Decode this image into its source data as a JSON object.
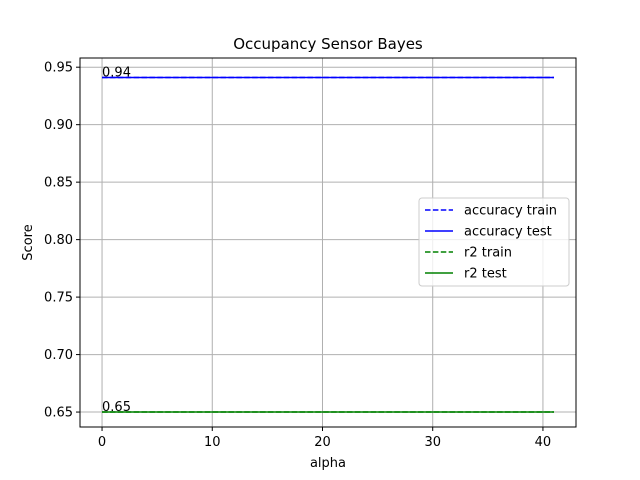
{
  "chart_data": {
    "type": "line",
    "title": "Occupancy Sensor Bayes",
    "xlabel": "alpha",
    "ylabel": "Score",
    "xlim": [
      -2,
      43
    ],
    "ylim": [
      0.637,
      0.958
    ],
    "xticks": [
      0,
      10,
      20,
      30,
      40
    ],
    "yticks": [
      0.65,
      0.7,
      0.75,
      0.8,
      0.85,
      0.9,
      0.95
    ],
    "ytick_labels": [
      "0.65",
      "0.70",
      "0.75",
      "0.80",
      "0.85",
      "0.90",
      "0.95"
    ],
    "grid": true,
    "legend_position": "center-right",
    "x": [
      0,
      41
    ],
    "series": [
      {
        "name": "accuracy train",
        "values": [
          0.941,
          0.941
        ],
        "color": "#0000ff",
        "dash": true
      },
      {
        "name": "accuracy test",
        "values": [
          0.941,
          0.941
        ],
        "color": "#0000ff",
        "dash": false
      },
      {
        "name": "r2 train",
        "values": [
          0.65,
          0.65
        ],
        "color": "#008000",
        "dash": true
      },
      {
        "name": "r2 test",
        "values": [
          0.65,
          0.65
        ],
        "color": "#008000",
        "dash": false
      }
    ],
    "annotations": [
      {
        "text": "0.94",
        "x": 0,
        "y": 0.941
      },
      {
        "text": "0.65",
        "x": 0,
        "y": 0.65
      }
    ]
  }
}
